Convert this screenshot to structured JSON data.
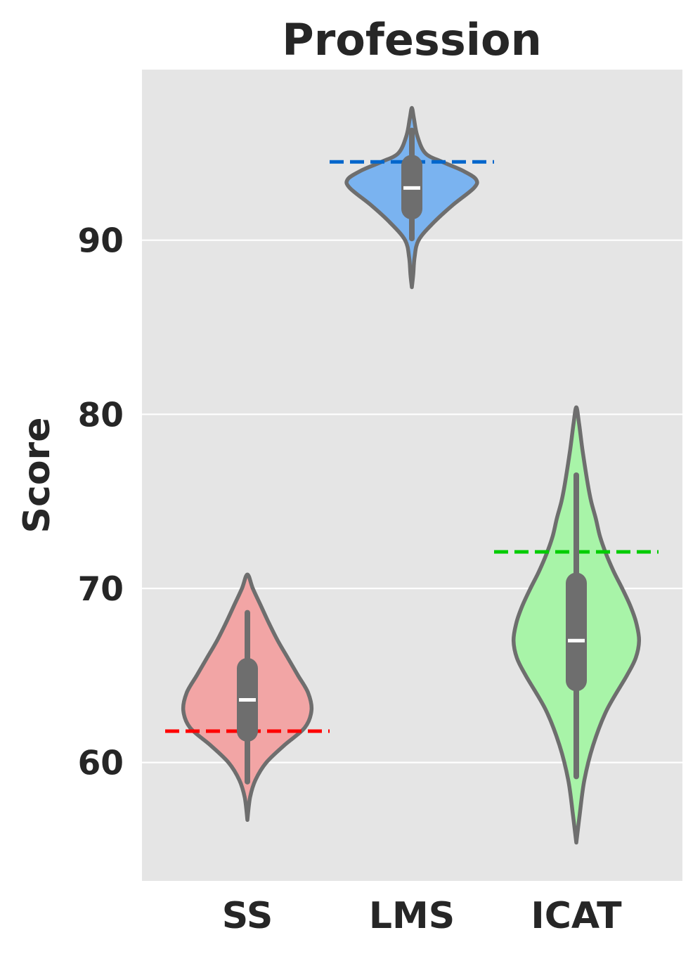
{
  "chart_data": {
    "type": "violin",
    "title": "Profession",
    "xlabel": "",
    "ylabel": "Score",
    "ylim": [
      53.2,
      99.8
    ],
    "yticks": [
      60,
      70,
      80,
      90
    ],
    "grid": true,
    "categories": [
      "SS",
      "LMS",
      "ICAT"
    ],
    "violins": [
      {
        "category": "SS",
        "fill": "#f2a5a5",
        "min": 56.7,
        "max": 70.8,
        "q1": 61.8,
        "median": 63.6,
        "q3": 65.4,
        "whisker_low": 58.9,
        "whisker_high": 68.6,
        "profile": [
          [
            56.7,
            0
          ],
          [
            58,
            4
          ],
          [
            59,
            12
          ],
          [
            60,
            28
          ],
          [
            61,
            55
          ],
          [
            62,
            85
          ],
          [
            63,
            95
          ],
          [
            64,
            90
          ],
          [
            65,
            75
          ],
          [
            66,
            60
          ],
          [
            67,
            45
          ],
          [
            68,
            32
          ],
          [
            69,
            20
          ],
          [
            70,
            8
          ],
          [
            70.8,
            0
          ]
        ]
      },
      {
        "category": "LMS",
        "fill": "#7ab3f0",
        "min": 87.3,
        "max": 97.6,
        "q1": 91.8,
        "median": 93.0,
        "q3": 94.3,
        "whisker_low": 90.1,
        "whisker_high": 96.3,
        "profile": [
          [
            87.3,
            0
          ],
          [
            88,
            2
          ],
          [
            89,
            4
          ],
          [
            90,
            10
          ],
          [
            91,
            32
          ],
          [
            92,
            60
          ],
          [
            93,
            92
          ],
          [
            93.5,
            95
          ],
          [
            94,
            75
          ],
          [
            94.5,
            45
          ],
          [
            95,
            20
          ],
          [
            96,
            8
          ],
          [
            97,
            3
          ],
          [
            97.6,
            0
          ]
        ]
      },
      {
        "category": "ICAT",
        "fill": "#a8f4a8",
        "min": 55.4,
        "max": 80.4,
        "q1": 64.7,
        "median": 67.0,
        "q3": 70.3,
        "whisker_low": 59.2,
        "whisker_high": 76.5,
        "profile": [
          [
            55.4,
            0
          ],
          [
            57,
            5
          ],
          [
            59,
            12
          ],
          [
            61,
            25
          ],
          [
            63,
            45
          ],
          [
            65,
            75
          ],
          [
            66,
            88
          ],
          [
            67,
            93
          ],
          [
            68,
            89
          ],
          [
            69,
            80
          ],
          [
            70,
            68
          ],
          [
            71,
            55
          ],
          [
            72,
            44
          ],
          [
            73,
            35
          ],
          [
            74,
            29
          ],
          [
            75,
            22
          ],
          [
            76,
            17
          ],
          [
            78,
            9
          ],
          [
            79.5,
            4
          ],
          [
            80.4,
            0
          ]
        ]
      }
    ],
    "reference_lines": [
      {
        "category": "SS",
        "value": 61.8,
        "color": "#ff0000"
      },
      {
        "category": "LMS",
        "value": 94.5,
        "color": "#0066cc"
      },
      {
        "category": "ICAT",
        "value": 72.1,
        "color": "#00cc00"
      }
    ],
    "colors": {
      "background": "#e5e5e5",
      "grid": "#ffffff",
      "outline": "#6e6e6e",
      "text": "#262626"
    }
  }
}
